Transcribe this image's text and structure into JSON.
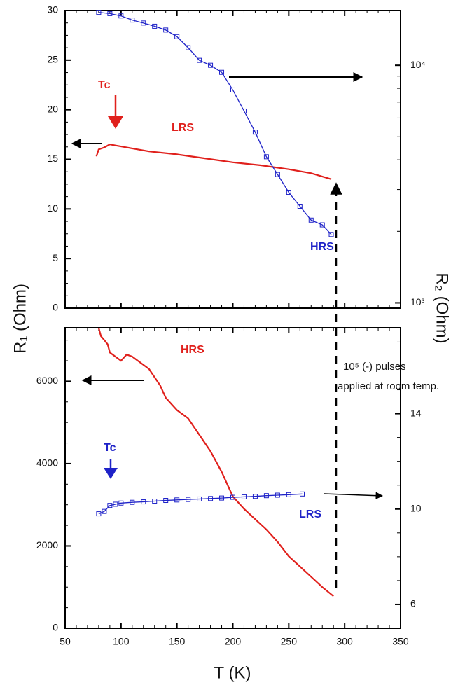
{
  "chart_data": [
    {
      "type": "line",
      "xlim": [
        50,
        350
      ],
      "ylim": [
        0,
        30
      ],
      "yticks": [
        0,
        5,
        10,
        15,
        20,
        25,
        30
      ],
      "y2lim": [
        950,
        17000
      ],
      "y2log": true,
      "y2ticks": [
        {
          "value": 1000,
          "label": "10³"
        },
        {
          "value": 10000,
          "label": "10⁴"
        }
      ],
      "ylabel": "R₁ (Ohm)",
      "y2label": "R₂ (Ohm)",
      "series": [
        {
          "name": "LRS",
          "color": "#e0201c",
          "axis": "y",
          "x": [
            78,
            80,
            85,
            90,
            95,
            100,
            110,
            125,
            150,
            175,
            200,
            225,
            250,
            270,
            288
          ],
          "values": [
            15.3,
            16.0,
            16.2,
            16.5,
            16.4,
            16.3,
            16.1,
            15.8,
            15.5,
            15.1,
            14.7,
            14.4,
            14.0,
            13.6,
            13.0
          ]
        },
        {
          "name": "HRS",
          "color": "#1e22c8",
          "axis": "y2",
          "marker": true,
          "x": [
            80,
            90,
            100,
            110,
            120,
            130,
            140,
            150,
            160,
            170,
            180,
            190,
            200,
            210,
            220,
            230,
            240,
            250,
            260,
            270,
            280,
            288
          ],
          "values": [
            16700,
            16500,
            16130,
            15500,
            15060,
            14600,
            14070,
            13200,
            11860,
            10490,
            10000,
            9340,
            7870,
            6420,
            5230,
            4120,
            3470,
            2920,
            2550,
            2230,
            2130,
            1940
          ]
        }
      ],
      "annotations": [
        {
          "text": "Tc",
          "color": "#e0201c"
        },
        {
          "text": "LRS",
          "color": "#e0201c"
        },
        {
          "text": "HRS",
          "color": "#1e22c8"
        }
      ]
    },
    {
      "type": "line",
      "xlim": [
        50,
        350
      ],
      "xticks": [
        50,
        100,
        150,
        200,
        250,
        300,
        350
      ],
      "ylim": [
        0,
        7300
      ],
      "yticks": [
        0,
        2000,
        4000,
        6000
      ],
      "y2lim": [
        5,
        17.6
      ],
      "y2ticks": [
        6,
        10,
        14
      ],
      "xlabel": "T (K)",
      "series": [
        {
          "name": "HRS",
          "color": "#e0201c",
          "axis": "y",
          "x": [
            80,
            82,
            85,
            88,
            90,
            95,
            100,
            105,
            110,
            115,
            120,
            125,
            130,
            135,
            140,
            145,
            150,
            155,
            160,
            165,
            170,
            175,
            180,
            185,
            190,
            195,
            200,
            210,
            220,
            230,
            240,
            250,
            260,
            270,
            280,
            290
          ],
          "values": [
            7300,
            7100,
            7000,
            6900,
            6700,
            6600,
            6500,
            6650,
            6600,
            6500,
            6400,
            6300,
            6100,
            5900,
            5600,
            5450,
            5300,
            5200,
            5100,
            4900,
            4700,
            4500,
            4300,
            4050,
            3800,
            3500,
            3200,
            2900,
            2650,
            2400,
            2100,
            1750,
            1500,
            1250,
            1000,
            780
          ]
        },
        {
          "name": "LRS",
          "color": "#1e22c8",
          "axis": "y2",
          "marker": true,
          "x": [
            80,
            85,
            90,
            95,
            100,
            110,
            120,
            130,
            140,
            150,
            160,
            170,
            180,
            190,
            200,
            210,
            220,
            230,
            240,
            250,
            262
          ],
          "values": [
            9.8,
            9.9,
            10.15,
            10.2,
            10.25,
            10.28,
            10.3,
            10.33,
            10.36,
            10.38,
            10.4,
            10.42,
            10.44,
            10.46,
            10.49,
            10.51,
            10.53,
            10.56,
            10.58,
            10.6,
            10.63
          ]
        }
      ],
      "annotations": [
        {
          "text": "HRS",
          "color": "#e0201c"
        },
        {
          "text": "Tc",
          "color": "#1e22c8"
        },
        {
          "text": "LRS",
          "color": "#1e22c8"
        },
        {
          "text": "10⁵ (-) pulses",
          "color": "#111111"
        },
        {
          "text": "applied at room temp.",
          "color": "#111111"
        }
      ]
    }
  ]
}
